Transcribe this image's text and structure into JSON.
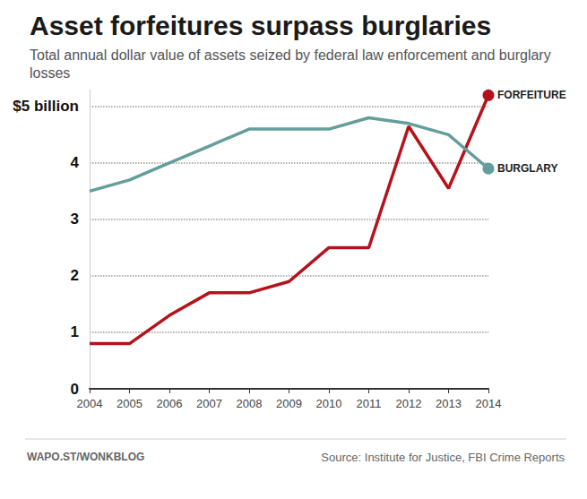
{
  "chart_data": {
    "type": "line",
    "title": "Asset forfeitures surpass burglaries",
    "subtitle": "Total annual dollar value of assets seized by federal law enforcement and burglary losses",
    "footer_left": "WAPO.ST/WONKBLOG",
    "source": "Source: Institute for Justice, FBI Crime Reports",
    "categories": [
      "2004",
      "2005",
      "2006",
      "2007",
      "2008",
      "2009",
      "2010",
      "2011",
      "2012",
      "2013",
      "2014"
    ],
    "series": [
      {
        "name": "FORFEITURE",
        "color": "#b5121b",
        "marker": "circle",
        "values": [
          0.8,
          0.8,
          1.3,
          1.7,
          1.7,
          1.9,
          2.5,
          2.5,
          4.65,
          3.55,
          5.2
        ]
      },
      {
        "name": "BURGLARY",
        "color": "#639e9b",
        "marker": "circle",
        "values": [
          3.5,
          3.7,
          4.0,
          4.3,
          4.6,
          4.6,
          4.6,
          4.8,
          4.7,
          4.5,
          3.9
        ]
      }
    ],
    "ylim": [
      0,
      5.3
    ],
    "yticks": [
      0,
      1,
      2,
      3,
      4,
      {
        "value": 5,
        "label": "$5 billion"
      }
    ],
    "grid": true
  }
}
